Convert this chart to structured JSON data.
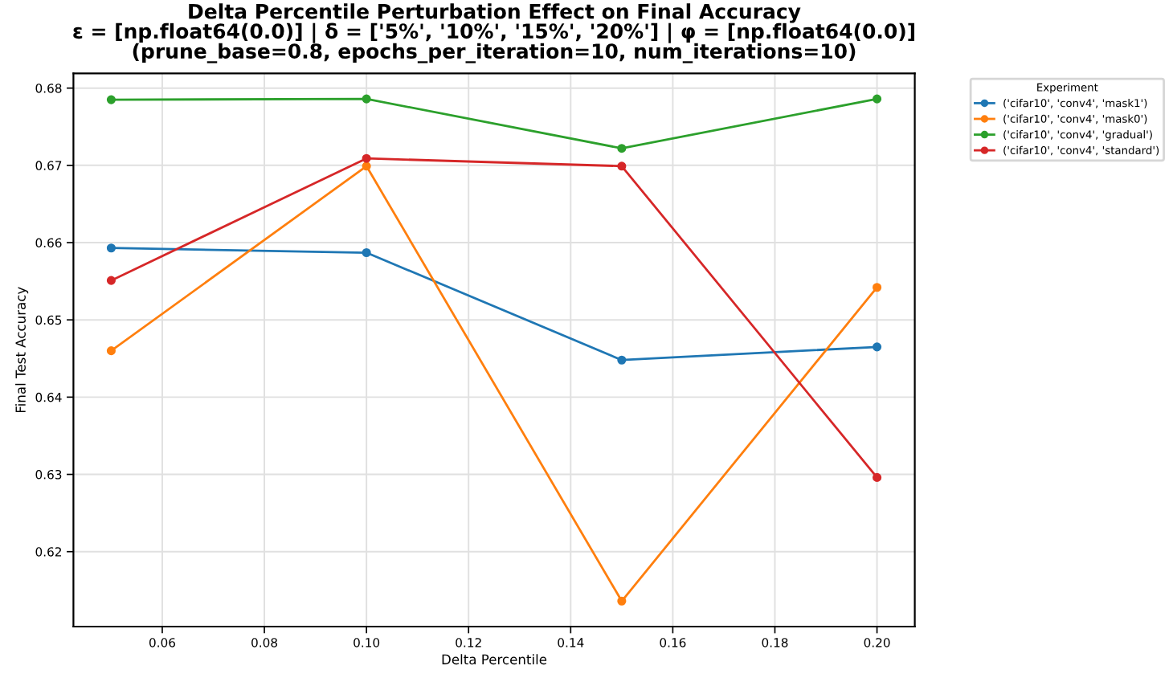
{
  "chart_data": {
    "type": "line",
    "title": "Delta Percentile Perturbation Effect on Final Accuracy\nε = [np.float64(0.0)] | δ = ['5%', '10%', '15%', '20%'] | φ = [np.float64(0.0)]\n(prune_base=0.8, epochs_per_iteration=10, num_iterations=10)",
    "xlabel": "Delta Percentile",
    "ylabel": "Final Test Accuracy",
    "legend_title": "Experiment",
    "x": [
      0.05,
      0.1,
      0.15,
      0.2
    ],
    "series": [
      {
        "name": "('cifar10', 'conv4', 'mask1')",
        "color": "#1f77b4",
        "values": [
          0.6593,
          0.6587,
          0.6448,
          0.6465
        ]
      },
      {
        "name": "('cifar10', 'conv4', 'mask0')",
        "color": "#ff7f0e",
        "values": [
          0.646,
          0.6699,
          0.6136,
          0.6542
        ]
      },
      {
        "name": "('cifar10', 'conv4', 'gradual')",
        "color": "#2ca02c",
        "values": [
          0.6785,
          0.6786,
          0.6722,
          0.6786
        ]
      },
      {
        "name": "('cifar10', 'conv4', 'standard')",
        "color": "#d62728",
        "values": [
          0.6551,
          0.6709,
          0.6699,
          0.6296
        ]
      }
    ],
    "xlim": [
      0.0426,
      0.2074
    ],
    "ylim": [
      0.6103,
      0.6819
    ],
    "xticks": [
      0.06,
      0.08,
      {
        "value": 0.1,
        "label": "0.10"
      },
      0.12,
      0.14,
      0.16,
      0.18,
      {
        "value": 0.2,
        "label": "0.20"
      }
    ],
    "yticks": [
      0.62,
      0.63,
      0.64,
      0.65,
      0.66,
      0.67,
      0.68
    ],
    "grid": true,
    "legend": "outside top right",
    "marker": "circle",
    "line_style": "solid"
  }
}
